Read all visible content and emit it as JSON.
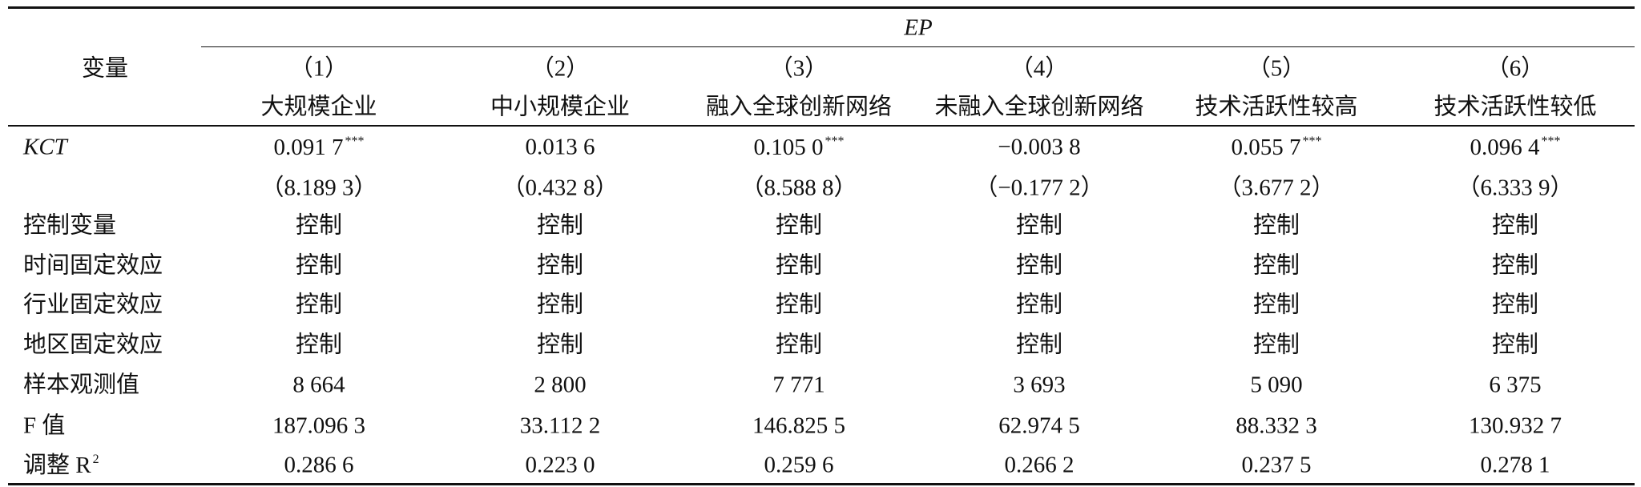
{
  "table": {
    "header": {
      "variable": "变量",
      "group": "EP",
      "columns": [
        {
          "number": "（1）",
          "label": "大规模企业"
        },
        {
          "number": "（2）",
          "label": "中小规模企业"
        },
        {
          "number": "（3）",
          "label": "融入全球创新网络"
        },
        {
          "number": "（4）",
          "label": "未融入全球创新网络"
        },
        {
          "number": "（5）",
          "label": "技术活跃性较高"
        },
        {
          "number": "（6）",
          "label": "技术活跃性较低"
        }
      ]
    },
    "rows": [
      {
        "label": "KCT",
        "cells": [
          {
            "value": "0.091 7",
            "stars": "***"
          },
          {
            "value": "0.013 6"
          },
          {
            "value": "0.105 0",
            "stars": "***"
          },
          {
            "value": "−0.003 8"
          },
          {
            "value": "0.055 7",
            "stars": "***"
          },
          {
            "value": "0.096 4",
            "stars": "***"
          }
        ]
      },
      {
        "cells": [
          "（8.189 3）",
          "（0.432 8）",
          "（8.588 8）",
          "（−0.177 2）",
          "（3.677 2）",
          "（6.333 9）"
        ]
      },
      {
        "label": "控制变量",
        "cells": [
          "控制",
          "控制",
          "控制",
          "控制",
          "控制",
          "控制"
        ]
      },
      {
        "label": "时间固定效应",
        "cells": [
          "控制",
          "控制",
          "控制",
          "控制",
          "控制",
          "控制"
        ]
      },
      {
        "label": "行业固定效应",
        "cells": [
          "控制",
          "控制",
          "控制",
          "控制",
          "控制",
          "控制"
        ]
      },
      {
        "label": "地区固定效应",
        "cells": [
          "控制",
          "控制",
          "控制",
          "控制",
          "控制",
          "控制"
        ]
      },
      {
        "label": "样本观测值",
        "cells": [
          "8 664",
          "2 800",
          "7 771",
          "3 693",
          "5 090",
          "6 375"
        ]
      },
      {
        "label": "F 值",
        "cells": [
          "187.096 3",
          "33.112 2",
          "146.825 5",
          "62.974 5",
          "88.332 3",
          "130.932 7"
        ]
      },
      {
        "label": "调整 R",
        "label_sup": "2",
        "cells": [
          "0.286 6",
          "0.223 0",
          "0.259 6",
          "0.266 2",
          "0.237 5",
          "0.278 1"
        ]
      }
    ]
  }
}
